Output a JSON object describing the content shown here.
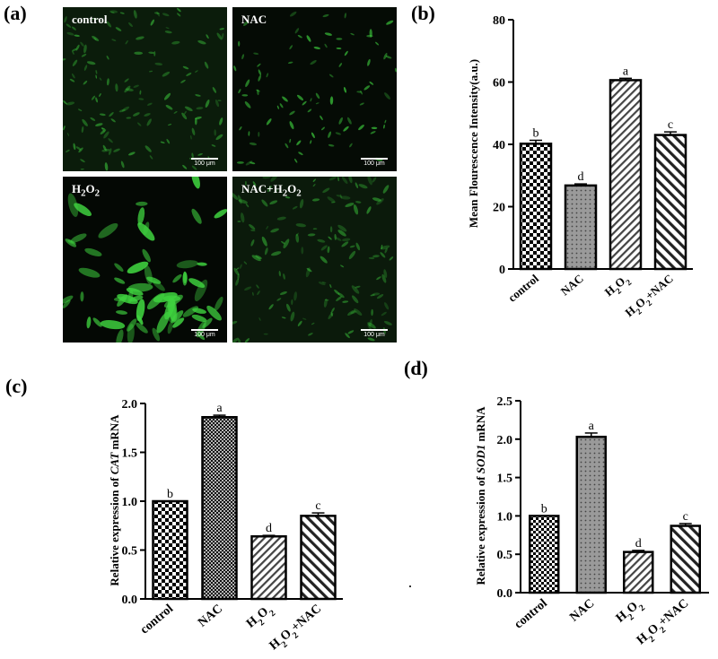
{
  "panels": {
    "a": "(a)",
    "b": "(b)",
    "c": "(c)",
    "d": "(d)"
  },
  "micrographs": {
    "scale_bar": "100 μm",
    "tiles": [
      {
        "id": "control",
        "label": "control"
      },
      {
        "id": "nac",
        "label": "NAC"
      },
      {
        "id": "h2o2",
        "label_base": "H",
        "label_sub1": "2",
        "label_mid": "O",
        "label_sub2": "2"
      },
      {
        "id": "nac-h2o2",
        "label_base": "NAC+H",
        "label_sub1": "2",
        "label_mid": "O",
        "label_sub2": "2"
      }
    ]
  },
  "colors": {
    "bar_fill": "#ffffff",
    "bar_stroke": "#000000",
    "dot_fill": "#888888",
    "cell_green": "#3fd23f"
  },
  "chart_data": [
    {
      "panel": "b",
      "type": "bar",
      "categories": [
        "control",
        "NAC",
        "H2O2",
        "H2O2+NAC"
      ],
      "values": [
        40.2,
        26.8,
        60.6,
        43.0
      ],
      "errors": [
        1.1,
        0.5,
        0.6,
        1.0
      ],
      "letters": [
        "b",
        "d",
        "a",
        "c"
      ],
      "patterns": [
        "checker",
        "dots",
        "diag-right",
        "diag-left"
      ],
      "ylabel": "Mean Flourescence Intensity(a.u.)",
      "ylim": [
        0,
        80
      ],
      "yticks": [
        0,
        20,
        40,
        60,
        80
      ],
      "ytick_labels": [
        "0",
        "20",
        "40",
        "60",
        "80"
      ],
      "grid": false
    },
    {
      "panel": "c",
      "type": "bar",
      "categories": [
        "control",
        "NAC",
        "H2O2",
        "H2O2+NAC"
      ],
      "values": [
        1.0,
        1.86,
        0.64,
        0.85
      ],
      "errors": [
        0.0,
        0.02,
        0.01,
        0.03
      ],
      "letters": [
        "b",
        "a",
        "d",
        "c"
      ],
      "patterns": [
        "checker",
        "crosshatch",
        "diag-right",
        "diag-left"
      ],
      "ylabel_pre": "Relative expression of ",
      "ylabel_gene": "CAT",
      "ylabel_post": " mRNA",
      "ylim": [
        0,
        2.0
      ],
      "yticks": [
        0,
        0.5,
        1.0,
        1.5,
        2.0
      ],
      "ytick_labels": [
        "0.0",
        "0.5",
        "1.0",
        "1.5",
        "2.0"
      ],
      "grid": false
    },
    {
      "panel": "d",
      "type": "bar",
      "categories": [
        "control",
        "NAC",
        "H2O2",
        "H2O2+NAC"
      ],
      "values": [
        1.0,
        2.03,
        0.53,
        0.87
      ],
      "errors": [
        0.0,
        0.05,
        0.02,
        0.03
      ],
      "letters": [
        "b",
        "a",
        "d",
        "c"
      ],
      "patterns": [
        "checker-small",
        "dots",
        "diag-right",
        "diag-left"
      ],
      "ylabel_pre": "Relative expression of ",
      "ylabel_gene": "SOD1",
      "ylabel_post": " mRNA",
      "ylim": [
        0,
        2.5
      ],
      "yticks": [
        0,
        0.5,
        1.0,
        1.5,
        2.0,
        2.5
      ],
      "ytick_labels": [
        "0.0",
        "0.5",
        "1.0",
        "1.5",
        "2.0",
        "2.5"
      ],
      "grid": false
    }
  ]
}
